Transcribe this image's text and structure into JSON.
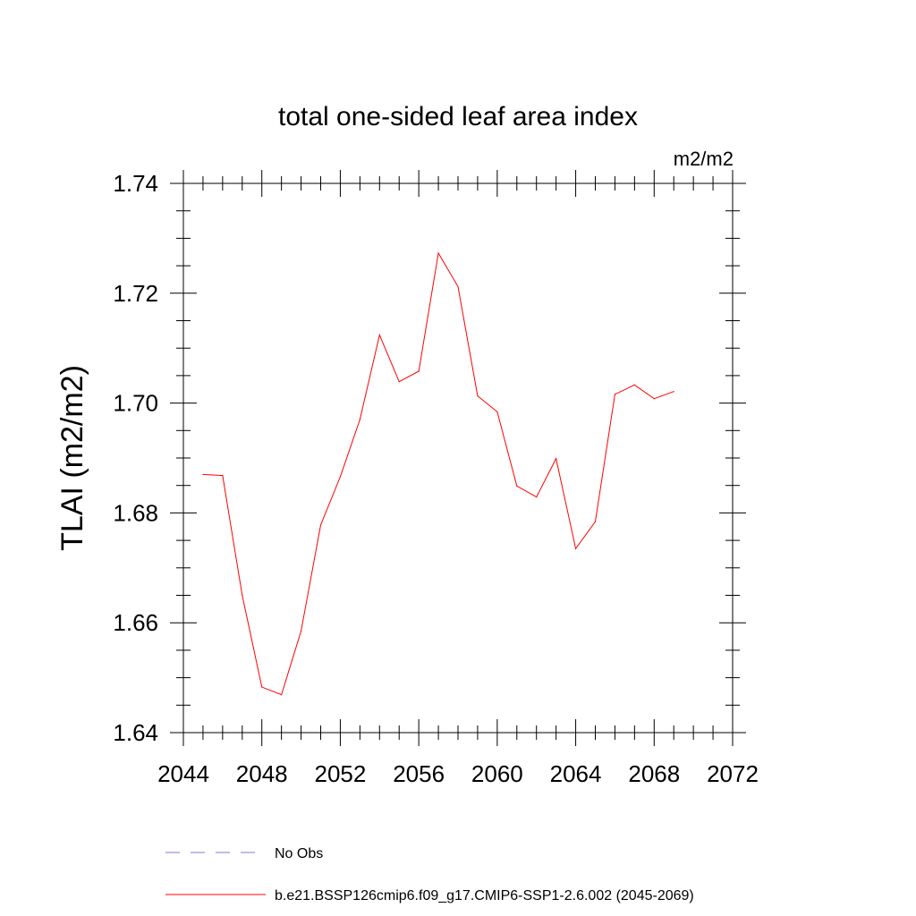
{
  "chart_data": {
    "type": "line",
    "title": "total one-sided leaf area index",
    "units": "m2/m2",
    "xlabel": "",
    "ylabel": "TLAI  (m2/m2)",
    "xlim": [
      2044,
      2072
    ],
    "ylim": [
      1.64,
      1.74
    ],
    "x_ticks": [
      2044,
      2048,
      2052,
      2056,
      2060,
      2064,
      2068,
      2072
    ],
    "y_ticks": [
      "1.64",
      "1.66",
      "1.68",
      "1.70",
      "1.72",
      "1.74"
    ],
    "y_tick_values": [
      1.64,
      1.66,
      1.68,
      1.7,
      1.72,
      1.74
    ],
    "x_minor_step": 1,
    "y_minor_step": 0.005,
    "series": [
      {
        "name": "b.e21.BSSP126cmip6.f09_g17.CMIP6-SSP1-2.6.002 (2045-2069)",
        "color": "#ff0000",
        "dash": "solid",
        "x": [
          2045,
          2046,
          2047,
          2048,
          2049,
          2050,
          2051,
          2052,
          2053,
          2054,
          2055,
          2056,
          2057,
          2058,
          2059,
          2060,
          2061,
          2062,
          2063,
          2064,
          2065,
          2066,
          2067,
          2068,
          2069
        ],
        "values": [
          1.687,
          1.6868,
          1.665,
          1.6483,
          1.6469,
          1.6585,
          1.6778,
          1.6866,
          1.697,
          1.7124,
          1.7039,
          1.7058,
          1.7273,
          1.7212,
          1.7013,
          1.6984,
          1.6849,
          1.6829,
          1.6899,
          1.6735,
          1.6784,
          1.7016,
          1.7033,
          1.7008,
          1.7021
        ]
      }
    ],
    "legend": [
      {
        "label": "No Obs",
        "color": "#7b7bd6",
        "dash": "dashed"
      },
      {
        "label": "b.e21.BSSP126cmip6.f09_g17.CMIP6-SSP1-2.6.002 (2045-2069)",
        "color": "#ff0000",
        "dash": "solid"
      }
    ],
    "legend_position": "bottom",
    "grid": false
  }
}
